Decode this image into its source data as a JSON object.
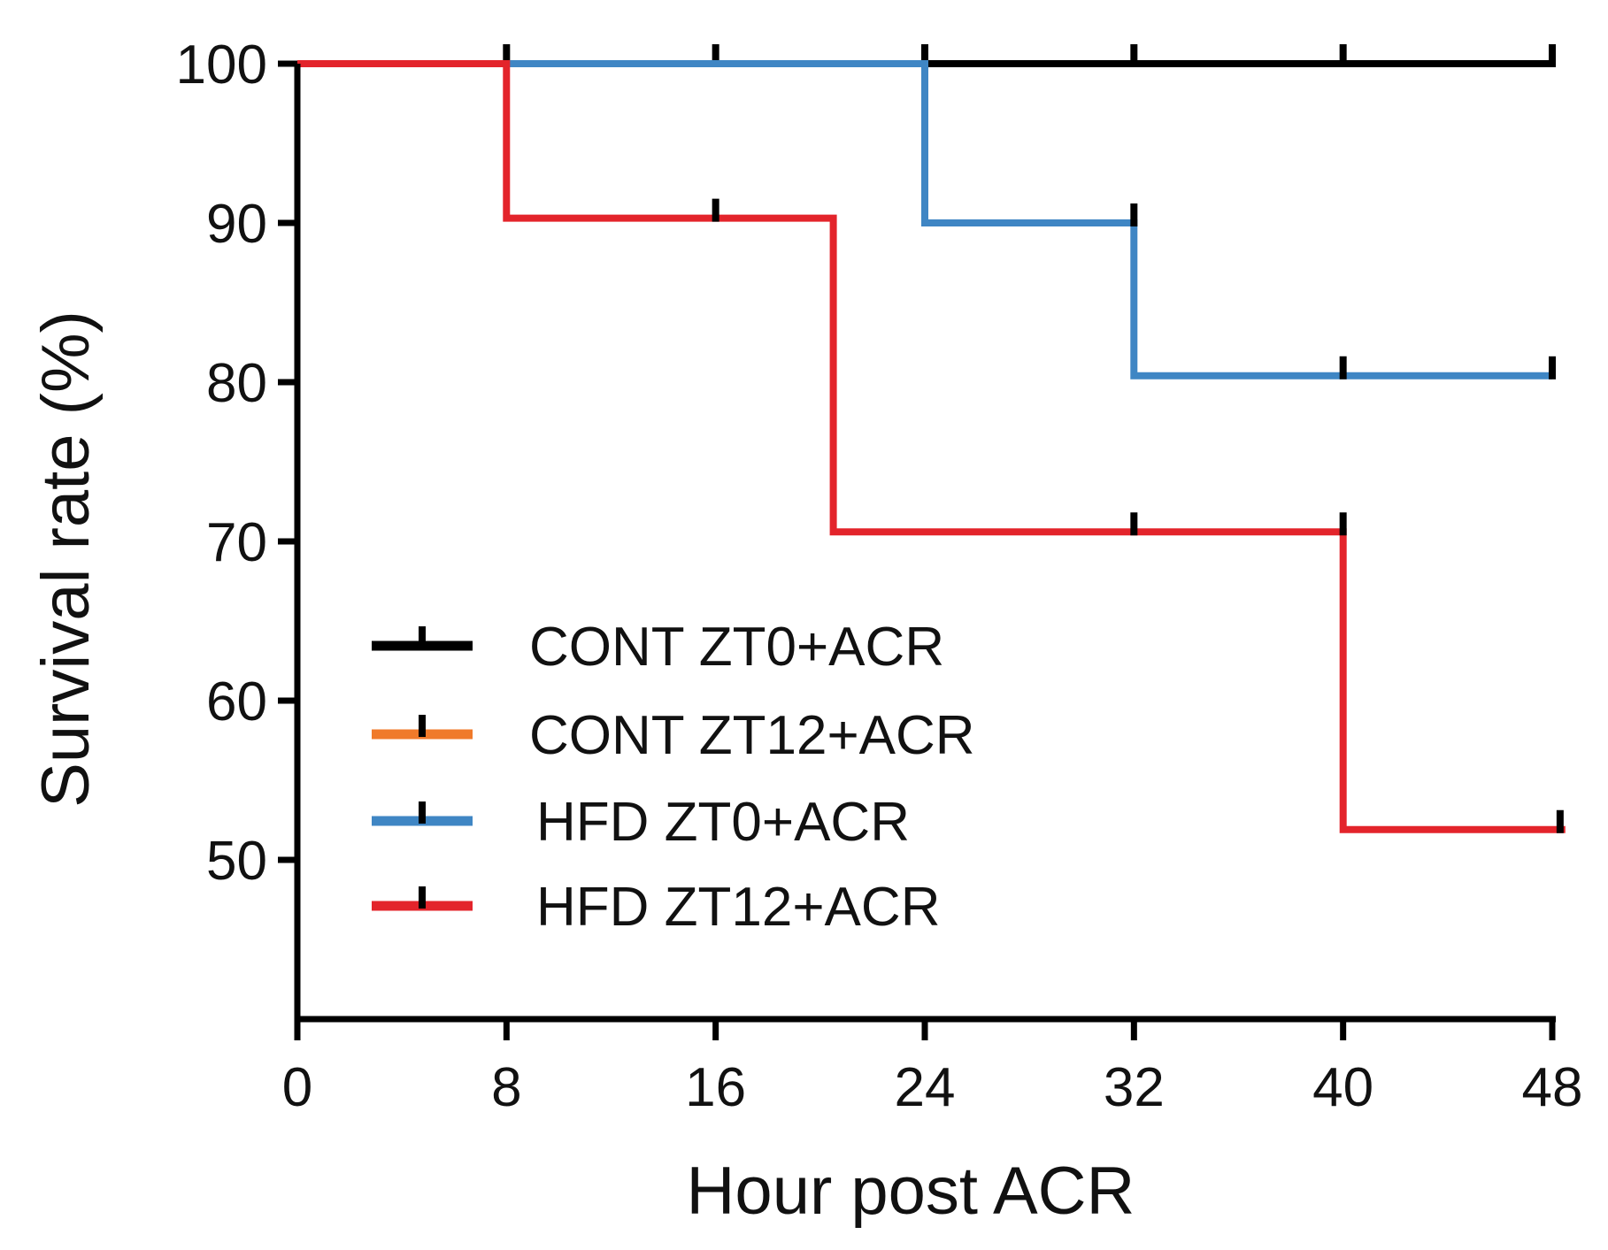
{
  "chart_data": {
    "type": "line",
    "subtype": "kaplan-meier-step",
    "title": "",
    "xlabel": "Hour post ACR",
    "ylabel": "Survival rate (%)",
    "xlim": [
      0,
      48
    ],
    "ylim": [
      40,
      100
    ],
    "x_ticks": [
      0,
      8,
      16,
      24,
      32,
      40,
      48
    ],
    "x_tick_labels": [
      "0",
      "8",
      "16",
      "24",
      "32",
      "40",
      "48"
    ],
    "y_ticks": [
      50,
      60,
      70,
      80,
      90,
      100
    ],
    "y_tick_labels": [
      "50",
      "60",
      "70",
      "80",
      "90",
      "100"
    ],
    "grid": false,
    "legend_position": "bottom-left inside",
    "series": [
      {
        "name": "CONT ZT0+ACR",
        "color": "#000000",
        "x": [
          0,
          48
        ],
        "y": [
          100,
          100
        ],
        "censor_x": [
          8,
          16,
          24,
          32,
          40,
          48
        ],
        "censor_y": [
          100,
          100,
          100,
          100,
          100,
          100
        ]
      },
      {
        "name": "CONT ZT12+ACR",
        "color": "#f07a2a",
        "x": [
          0,
          48
        ],
        "y": [
          100,
          100
        ],
        "censor_x": [],
        "censor_y": []
      },
      {
        "name": "HFD ZT0+ACR",
        "color": "#3f86c4",
        "x": [
          0,
          24,
          24,
          32,
          32,
          48
        ],
        "y": [
          100,
          100,
          90,
          90,
          80.4,
          80.4
        ],
        "censor_x": [
          32,
          40,
          48
        ],
        "censor_y": [
          90,
          80.4,
          80.4
        ]
      },
      {
        "name": "HFD ZT12+ACR",
        "color": "#e3242b",
        "x": [
          0,
          8,
          8,
          20.5,
          20.5,
          40,
          40,
          48.5
        ],
        "y": [
          100,
          100,
          90.3,
          90.3,
          70.6,
          70.6,
          51.9,
          51.9
        ],
        "censor_x": [
          16,
          32,
          40,
          48.3
        ],
        "censor_y": [
          90.3,
          70.6,
          70.6,
          51.9
        ]
      }
    ]
  }
}
